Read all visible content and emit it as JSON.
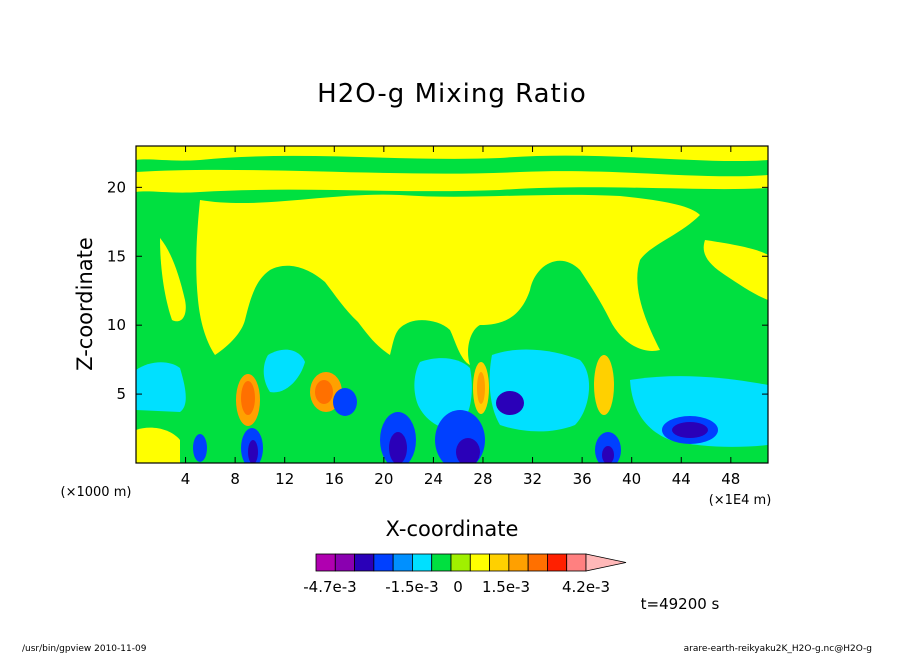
{
  "chart_data": {
    "type": "heatmap",
    "title": "H2O-g Mixing Ratio",
    "xlabel": "X-coordinate",
    "ylabel": "Z-coordinate",
    "x_unit_note": "(×1000 m)",
    "x_scale_note": "(×1E4 m)",
    "xlim": [
      0,
      51
    ],
    "ylim": [
      0,
      23
    ],
    "x_ticks": [
      "4",
      "8",
      "12",
      "16",
      "20",
      "24",
      "28",
      "32",
      "36",
      "40",
      "44",
      "48"
    ],
    "y_ticks": [
      "5",
      "10",
      "15",
      "20"
    ],
    "time_label": "t=49200 s",
    "colorbar": {
      "labels": [
        "-4.7e-3",
        "-1.5e-3",
        "0",
        "1.5e-3",
        "4.2e-3"
      ],
      "colors": [
        "#b000b0",
        "#8a00b0",
        "#2a00b8",
        "#0040ff",
        "#0090ff",
        "#00e0ff",
        "#00e040",
        "#a0f000",
        "#ffff00",
        "#ffd000",
        "#ffa000",
        "#ff7000",
        "#ff2000",
        "#ff8080",
        "#ffb8b8"
      ]
    },
    "features": [
      {
        "x": 9.5,
        "z": 4.5,
        "value": "positive",
        "color": "#ff7000"
      },
      {
        "x": 15.5,
        "z": 5.0,
        "value": "positive",
        "color": "#ff7000"
      },
      {
        "x": 27.8,
        "z": 5.2,
        "value": "positive",
        "color": "#ffa000"
      },
      {
        "x": 38.0,
        "z": 5.5,
        "value": "positive",
        "color": "#ffd000"
      },
      {
        "x": 9.8,
        "z": 1.0,
        "value": "negative",
        "color": "#2a00b8"
      },
      {
        "x": 21.5,
        "z": 1.5,
        "value": "negative",
        "color": "#2a00b8"
      },
      {
        "x": 26.5,
        "z": 1.8,
        "value": "negative",
        "color": "#2a00b8"
      },
      {
        "x": 30.0,
        "z": 4.5,
        "value": "negative",
        "color": "#0040ff"
      },
      {
        "x": 38.5,
        "z": 1.0,
        "value": "negative",
        "color": "#2a00b8"
      },
      {
        "x": 44.0,
        "z": 2.5,
        "value": "negative",
        "color": "#2a00b8"
      }
    ]
  },
  "footer": {
    "left": "/usr/bin/gpview   2010-11-09",
    "right": "arare-earth-reikyaku2K_H2O-g.nc@H2O-g"
  }
}
